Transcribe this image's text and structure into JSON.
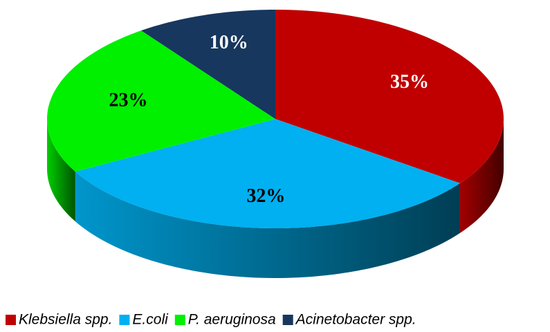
{
  "chart_data": {
    "type": "pie",
    "categories": [
      "Klebsiella spp.",
      "E.coli",
      "P. aeruginosa",
      "Acinetobacter spp."
    ],
    "values": [
      35,
      32,
      23,
      10
    ],
    "value_labels": [
      "35%",
      "32%",
      "23%",
      "10%"
    ],
    "colors": [
      "#c00000",
      "#00b0f0",
      "#00f000",
      "#17375e"
    ],
    "legend": "bottom"
  }
}
